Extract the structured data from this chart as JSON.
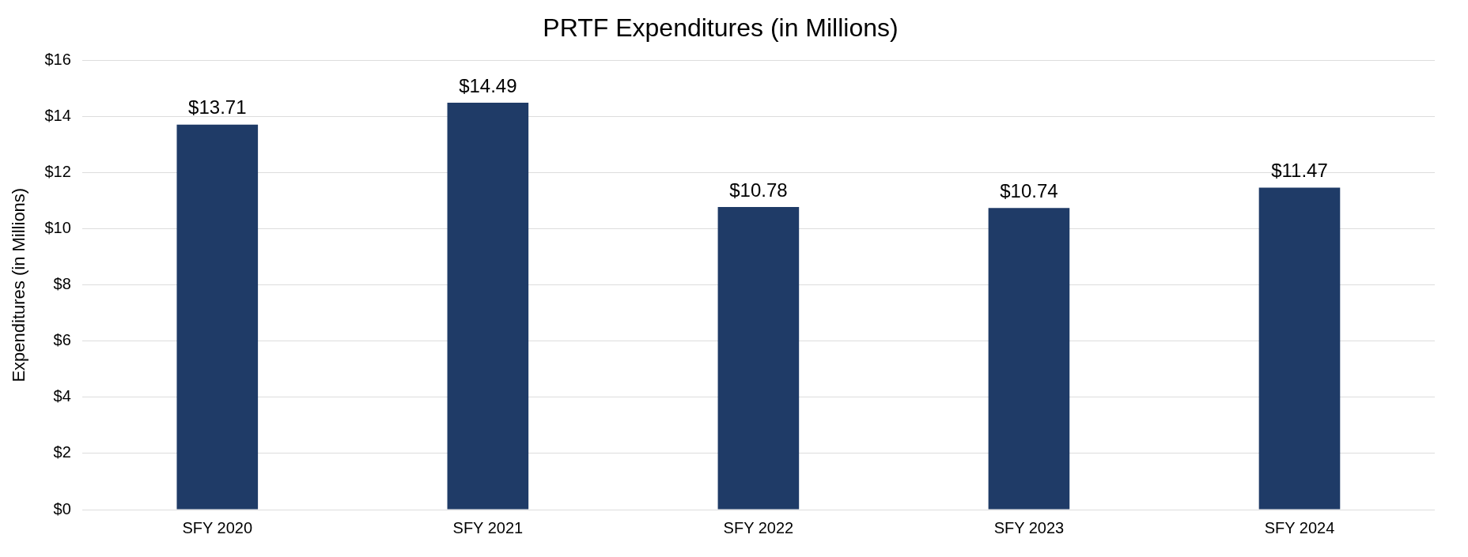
{
  "chart_data": {
    "type": "bar",
    "title": "PRTF Expenditures (in Millions)",
    "ylabel": "Expenditures (in Millions)",
    "categories": [
      "SFY 2020",
      "SFY 2021",
      "SFY 2022",
      "SFY 2023",
      "SFY 2024"
    ],
    "values": [
      13.71,
      14.49,
      10.78,
      10.74,
      11.47
    ],
    "value_labels": [
      "$13.71",
      "$14.49",
      "$10.78",
      "$10.74",
      "$11.47"
    ],
    "color": "#1f3b67",
    "ylim": [
      0,
      16
    ],
    "yticks": [
      {
        "value": 0,
        "label": "$0"
      },
      {
        "value": 2,
        "label": "$2"
      },
      {
        "value": 4,
        "label": "$4"
      },
      {
        "value": 6,
        "label": "$6"
      },
      {
        "value": 8,
        "label": "$8"
      },
      {
        "value": 10,
        "label": "$10"
      },
      {
        "value": 12,
        "label": "$12"
      },
      {
        "value": 14,
        "label": "$14"
      },
      {
        "value": 16,
        "label": "$16"
      }
    ],
    "grid": "y",
    "legend": false
  }
}
